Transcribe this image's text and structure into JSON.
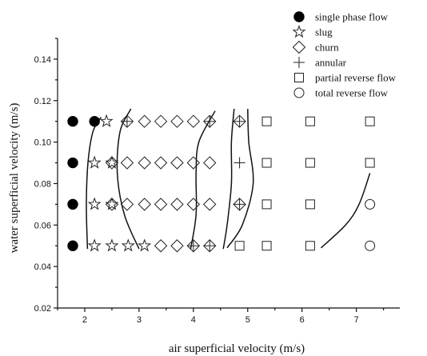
{
  "chart_data": {
    "type": "scatter",
    "xlabel": "air superficial velocity (m/s)",
    "ylabel": "water superficial velocity (m/s)",
    "xlim": [
      1.5,
      7.8
    ],
    "ylim": [
      0.02,
      0.15
    ],
    "xticks": [
      "2",
      "3",
      "4",
      "5",
      "6",
      "7"
    ],
    "yticks": [
      "0.02",
      "0.04",
      "0.06",
      "0.08",
      "0.10",
      "0.12",
      "0.14"
    ],
    "legend_position": "top-right",
    "series": [
      {
        "name": "single phase flow",
        "marker": "filled-circle",
        "points": [
          [
            1.78,
            0.11
          ],
          [
            2.18,
            0.11
          ],
          [
            1.78,
            0.09
          ],
          [
            1.78,
            0.07
          ],
          [
            1.78,
            0.05
          ]
        ]
      },
      {
        "name": "slug",
        "marker": "star",
        "points": [
          [
            2.4,
            0.11
          ],
          [
            2.18,
            0.09
          ],
          [
            2.5,
            0.09
          ],
          [
            2.18,
            0.07
          ],
          [
            2.5,
            0.07
          ],
          [
            2.18,
            0.05
          ],
          [
            2.5,
            0.05
          ],
          [
            2.8,
            0.05
          ],
          [
            3.1,
            0.05
          ]
        ]
      },
      {
        "name": "churn",
        "marker": "diamond",
        "points": [
          [
            2.78,
            0.11
          ],
          [
            3.1,
            0.11
          ],
          [
            3.4,
            0.11
          ],
          [
            3.7,
            0.11
          ],
          [
            4.0,
            0.11
          ],
          [
            4.3,
            0.11
          ],
          [
            4.85,
            0.11
          ],
          [
            2.5,
            0.09
          ],
          [
            2.78,
            0.09
          ],
          [
            3.1,
            0.09
          ],
          [
            3.4,
            0.09
          ],
          [
            3.7,
            0.09
          ],
          [
            4.0,
            0.09
          ],
          [
            4.3,
            0.09
          ],
          [
            2.5,
            0.07
          ],
          [
            2.78,
            0.07
          ],
          [
            3.1,
            0.07
          ],
          [
            3.4,
            0.07
          ],
          [
            3.7,
            0.07
          ],
          [
            4.0,
            0.07
          ],
          [
            4.3,
            0.07
          ],
          [
            4.85,
            0.07
          ],
          [
            3.4,
            0.05
          ],
          [
            3.7,
            0.05
          ],
          [
            4.0,
            0.05
          ],
          [
            4.3,
            0.05
          ]
        ]
      },
      {
        "name": "annular",
        "marker": "plus",
        "points": [
          [
            2.78,
            0.11
          ],
          [
            4.3,
            0.11
          ],
          [
            4.85,
            0.11
          ],
          [
            4.85,
            0.09
          ],
          [
            4.85,
            0.07
          ],
          [
            4.0,
            0.05
          ],
          [
            4.3,
            0.05
          ]
        ]
      },
      {
        "name": "partial reverse flow",
        "marker": "square",
        "points": [
          [
            5.35,
            0.11
          ],
          [
            6.15,
            0.11
          ],
          [
            7.25,
            0.11
          ],
          [
            5.35,
            0.09
          ],
          [
            6.15,
            0.09
          ],
          [
            7.25,
            0.09
          ],
          [
            5.35,
            0.07
          ],
          [
            6.15,
            0.07
          ],
          [
            4.85,
            0.05
          ],
          [
            5.35,
            0.05
          ],
          [
            6.15,
            0.05
          ]
        ]
      },
      {
        "name": "total reverse flow",
        "marker": "circle",
        "points": [
          [
            7.25,
            0.07
          ],
          [
            7.25,
            0.05
          ]
        ]
      }
    ],
    "boundaries": [
      [
        [
          2.05,
          0.0485
        ],
        [
          2.03,
          0.07
        ],
        [
          2.06,
          0.09
        ],
        [
          2.15,
          0.105
        ],
        [
          2.3,
          0.112
        ]
      ],
      [
        [
          3.0,
          0.0485
        ],
        [
          2.73,
          0.065
        ],
        [
          2.6,
          0.085
        ],
        [
          2.65,
          0.105
        ],
        [
          2.85,
          0.116
        ]
      ],
      [
        [
          3.95,
          0.0485
        ],
        [
          4.05,
          0.065
        ],
        [
          4.05,
          0.085
        ],
        [
          4.1,
          0.1
        ],
        [
          4.4,
          0.115
        ]
      ],
      [
        [
          4.55,
          0.0485
        ],
        [
          4.62,
          0.06
        ],
        [
          4.7,
          0.08
        ],
        [
          4.7,
          0.1
        ],
        [
          4.75,
          0.116
        ]
      ],
      [
        [
          4.62,
          0.049
        ],
        [
          4.9,
          0.06
        ],
        [
          5.1,
          0.08
        ],
        [
          5.02,
          0.1
        ],
        [
          5.0,
          0.116
        ]
      ],
      [
        [
          6.35,
          0.049
        ],
        [
          6.8,
          0.06
        ],
        [
          7.05,
          0.07
        ],
        [
          7.25,
          0.085
        ]
      ]
    ]
  }
}
